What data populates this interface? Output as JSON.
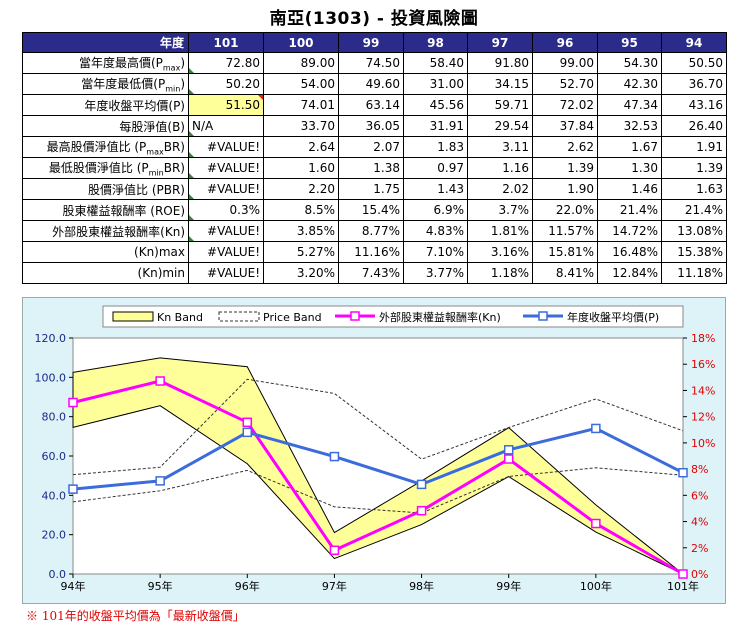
{
  "title": "南亞(1303) -  投資風險圖",
  "table": {
    "corner": "年度",
    "columns": [
      "101",
      "100",
      "99",
      "98",
      "97",
      "96",
      "95",
      "94"
    ],
    "rows": [
      {
        "label": "當年度最高價(P",
        "sub": "max",
        "suffix": ")",
        "values": [
          "72.80",
          "89.00",
          "74.50",
          "58.40",
          "91.80",
          "99.00",
          "54.30",
          "50.50"
        ],
        "mark": true
      },
      {
        "label": "當年度最低價(P",
        "sub": "min",
        "suffix": ")",
        "values": [
          "50.20",
          "54.00",
          "49.60",
          "31.00",
          "34.15",
          "52.70",
          "42.30",
          "36.70"
        ],
        "mark": true
      },
      {
        "label": "年度收盤平均價(P)",
        "values": [
          "51.50",
          "74.01",
          "63.14",
          "45.56",
          "59.71",
          "72.02",
          "47.34",
          "43.16"
        ],
        "mark": true,
        "highlight": true
      },
      {
        "label": "每股淨值(B)",
        "values": [
          "N/A",
          "33.70",
          "36.05",
          "31.91",
          "29.54",
          "37.84",
          "32.53",
          "26.40"
        ],
        "mark": true,
        "firstLeft": true
      },
      {
        "label": "最高股價淨值比 (P",
        "sub": "max",
        "suffix": "BR)",
        "values": [
          "#VALUE!",
          "2.64",
          "2.07",
          "1.83",
          "3.11",
          "2.62",
          "1.67",
          "1.91"
        ],
        "mark": true
      },
      {
        "label": "最低股價淨值比 (P",
        "sub": "min",
        "suffix": "BR)",
        "values": [
          "#VALUE!",
          "1.60",
          "1.38",
          "0.97",
          "1.16",
          "1.39",
          "1.30",
          "1.39"
        ],
        "mark": true
      },
      {
        "label": "股價淨值比 (PBR)",
        "values": [
          "#VALUE!",
          "2.20",
          "1.75",
          "1.43",
          "2.02",
          "1.90",
          "1.46",
          "1.63"
        ],
        "mark": true
      },
      {
        "label": "股東權益報酬率 (ROE)",
        "values": [
          "0.3%",
          "8.5%",
          "15.4%",
          "6.9%",
          "3.7%",
          "22.0%",
          "21.4%",
          "21.4%"
        ],
        "mark": true
      },
      {
        "label": "外部股東權益報酬率(Kn)",
        "values": [
          "#VALUE!",
          "3.85%",
          "8.77%",
          "4.83%",
          "1.81%",
          "11.57%",
          "14.72%",
          "13.08%"
        ],
        "mark": true
      },
      {
        "label": "(Kn)max",
        "values": [
          "#VALUE!",
          "5.27%",
          "11.16%",
          "7.10%",
          "3.16%",
          "15.81%",
          "16.48%",
          "15.38%"
        ],
        "mark": false
      },
      {
        "label": "(Kn)min",
        "values": [
          "#VALUE!",
          "3.20%",
          "7.43%",
          "3.77%",
          "1.18%",
          "8.41%",
          "12.84%",
          "11.18%"
        ],
        "mark": false
      }
    ]
  },
  "chart_data": {
    "type": "line",
    "categories": [
      "94年",
      "95年",
      "96年",
      "97年",
      "98年",
      "99年",
      "100年",
      "101年"
    ],
    "y_left": {
      "min": 0,
      "max": 120,
      "ticks": [
        "0.0",
        "20.0",
        "40.0",
        "60.0",
        "80.0",
        "100.0",
        "120.0"
      ]
    },
    "y_right": {
      "min": 0,
      "max": 18,
      "ticks": [
        "0%",
        "2%",
        "4%",
        "6%",
        "8%",
        "10%",
        "12%",
        "14%",
        "16%",
        "18%"
      ]
    },
    "legend": [
      "Kn Band",
      "Price Band",
      "外部股東權益報酬率(Kn)",
      "年度收盤平均價(P)"
    ],
    "kn_band": {
      "upper": [
        15.38,
        16.48,
        15.81,
        3.16,
        7.1,
        11.16,
        5.27,
        0
      ],
      "lower": [
        11.18,
        12.84,
        8.41,
        1.18,
        3.77,
        7.43,
        3.2,
        0
      ]
    },
    "price_band": {
      "upper": [
        50.5,
        54.3,
        99.0,
        91.8,
        58.4,
        74.5,
        89.0,
        72.8
      ],
      "lower": [
        36.7,
        42.3,
        52.7,
        34.15,
        31.0,
        49.6,
        54.0,
        50.2
      ]
    },
    "series": [
      {
        "name": "外部股東權益報酬率(Kn)",
        "axis": "right",
        "color": "#ff00ff",
        "values": [
          13.08,
          14.72,
          11.57,
          1.81,
          4.83,
          8.77,
          3.85,
          0
        ]
      },
      {
        "name": "年度收盤平均價(P)",
        "axis": "left",
        "color": "#3b6bdc",
        "values": [
          43.16,
          47.34,
          72.02,
          59.71,
          45.56,
          63.14,
          74.01,
          51.5
        ]
      }
    ]
  },
  "footnote": "※ 101年的收盤平均價為「最新收盤價」"
}
